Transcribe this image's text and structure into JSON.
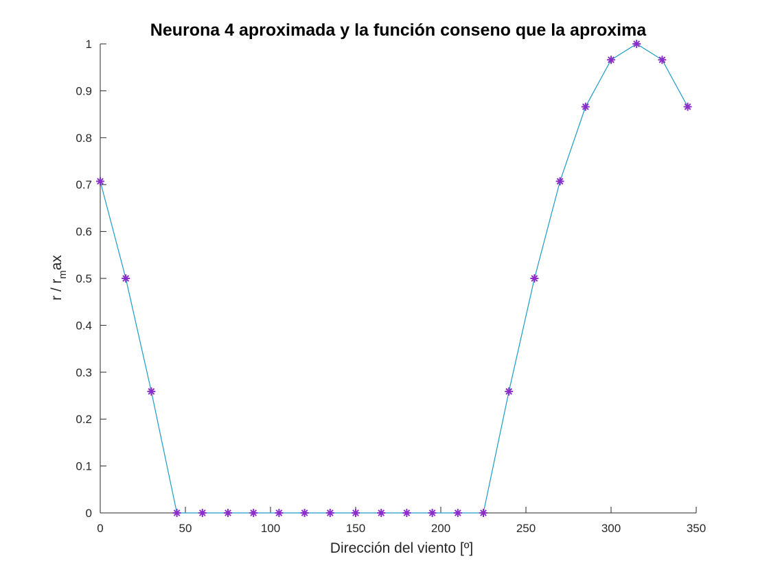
{
  "chart_data": {
    "type": "line",
    "title": "Neurona 4 aproximada y la función conseno que la aproxima",
    "xlabel": "Dirección del viento [º]",
    "ylabel": {
      "base": "r / r",
      "subscript": "m",
      "suffix": "ax"
    },
    "xlim": [
      0,
      350
    ],
    "ylim": [
      0,
      1
    ],
    "xticks": [
      0,
      50,
      100,
      150,
      200,
      250,
      300,
      350
    ],
    "yticks": [
      0,
      0.1,
      0.2,
      0.3,
      0.4,
      0.5,
      0.6,
      0.7,
      0.8,
      0.9,
      1
    ],
    "ytick_labels": [
      "0",
      "0.1",
      "0.2",
      "0.3",
      "0.4",
      "0.5",
      "0.6",
      "0.7",
      "0.8",
      "0.9",
      "1"
    ],
    "x": [
      0,
      15,
      30,
      45,
      60,
      75,
      90,
      105,
      120,
      135,
      150,
      165,
      180,
      195,
      210,
      225,
      240,
      255,
      270,
      285,
      300,
      315,
      330,
      345
    ],
    "series": [
      {
        "name": "Neurona 4",
        "values": [
          0.707,
          0.5,
          0.259,
          0,
          0,
          0,
          0,
          0,
          0,
          0,
          0,
          0,
          0,
          0,
          0,
          0,
          0.259,
          0.5,
          0.707,
          0.866,
          0.966,
          1.0,
          0.966,
          0.866
        ],
        "line_color": "#1a9bc4",
        "marker_color": "#8a2ec9",
        "marker": "asterisk"
      }
    ]
  }
}
